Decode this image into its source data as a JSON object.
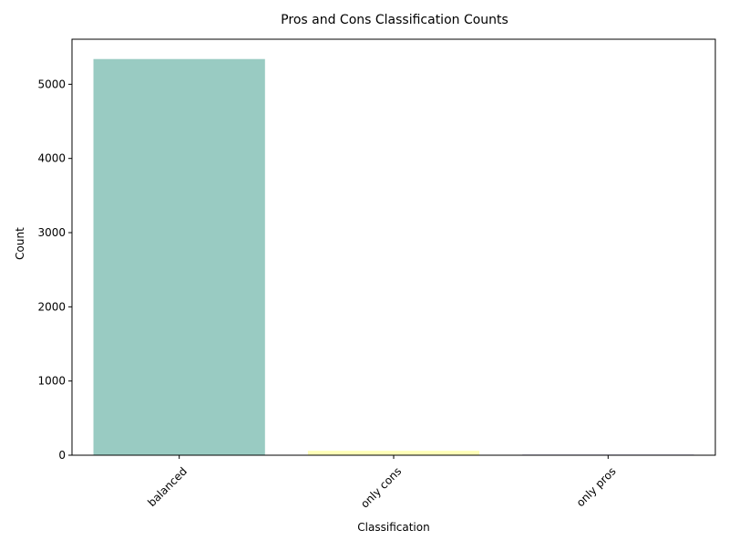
{
  "chart_data": {
    "type": "bar",
    "title": "Pros and Cons Classification Counts",
    "xlabel": "Classification",
    "ylabel": "Count",
    "categories": [
      "balanced",
      "only cons",
      "only pros"
    ],
    "values": [
      5340,
      60,
      10
    ],
    "colors": [
      "#99cbc2",
      "#ffffb8",
      "#bebada"
    ],
    "ylim": [
      0,
      5607
    ],
    "yticks": [
      0,
      1000,
      2000,
      3000,
      4000,
      5000
    ],
    "ytick_labels": [
      "0",
      "1000",
      "2000",
      "3000",
      "4000",
      "5000"
    ],
    "xtick_rotation_deg": 45,
    "grid": false,
    "legend": "none"
  }
}
